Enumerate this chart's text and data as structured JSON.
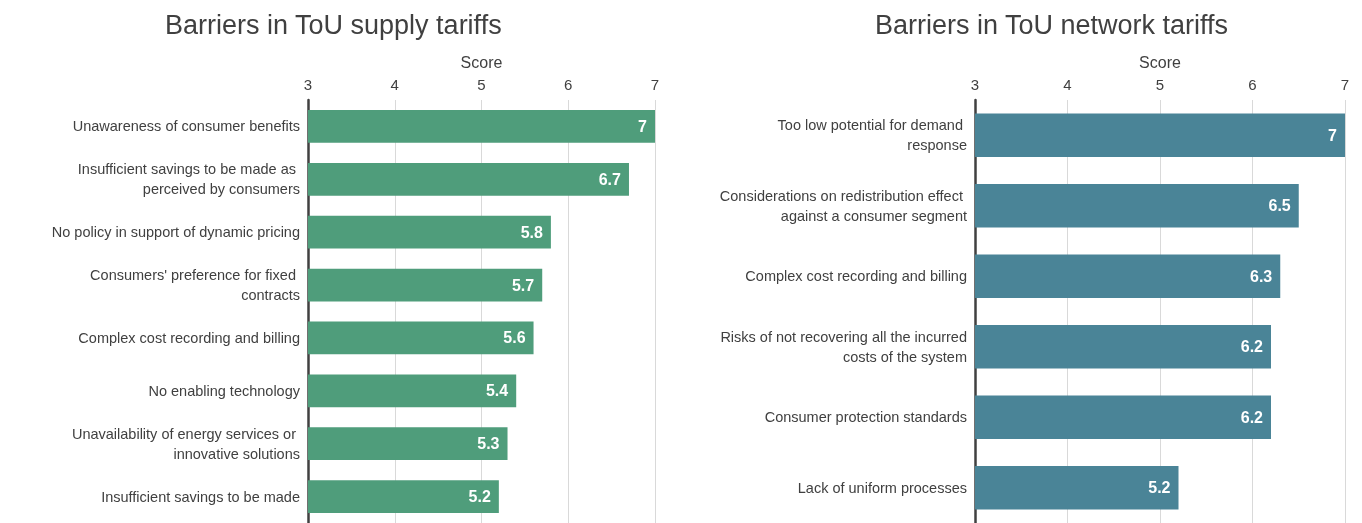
{
  "chart_data": [
    {
      "type": "bar",
      "orientation": "horizontal",
      "title": "Barriers in ToU supply tariffs",
      "xlabel": "Score",
      "categories": [
        "Unawareness of consumer benefits",
        "Insufficient savings to be made as perceived by consumers",
        "No policy in support of dynamic pricing",
        "Consumers' preference for fixed contracts",
        "Complex cost recording and billing",
        "No enabling technology",
        "Unavailability of energy services or innovative solutions",
        "Insufficient savings to be made"
      ],
      "values": [
        7,
        6.7,
        5.8,
        5.7,
        5.6,
        5.4,
        5.3,
        5.2
      ],
      "color": "#4f9d7b",
      "xlim": [
        3,
        7
      ],
      "xticks": [
        3,
        4,
        5,
        6,
        7
      ],
      "grid": "x",
      "data_labels": true
    },
    {
      "type": "bar",
      "orientation": "horizontal",
      "title": "Barriers in ToU network tariffs",
      "xlabel": "Score",
      "categories": [
        "Too low potential for demand response",
        "Considerations on redistribution effect against a consumer segment",
        "Complex cost recording and billing",
        "Risks of not recovering all the incurred costs of the system",
        "Consumer protection standards",
        "Lack of uniform processes"
      ],
      "values": [
        7,
        6.5,
        6.3,
        6.2,
        6.2,
        5.2
      ],
      "color": "#4a8497",
      "xlim": [
        3,
        7
      ],
      "xticks": [
        3,
        4,
        5,
        6,
        7
      ],
      "grid": "x",
      "data_labels": true
    }
  ]
}
